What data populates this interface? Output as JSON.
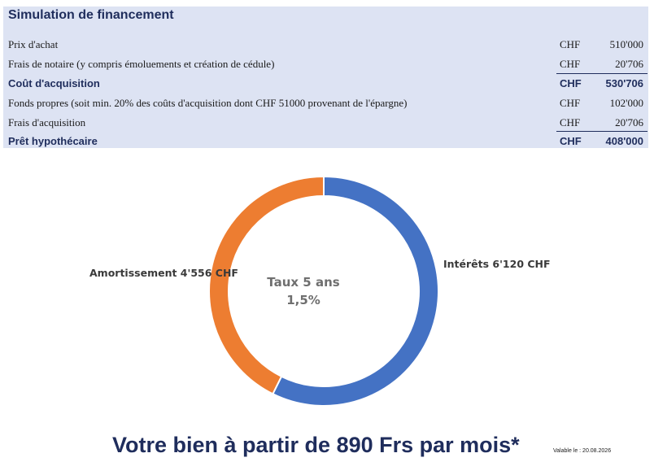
{
  "title": "Simulation de financement",
  "rows": [
    {
      "label": "Prix d'achat",
      "currency": "CHF",
      "amount": "510'000",
      "bold": false
    },
    {
      "label": "Frais de notaire (y compris émoluements et création de cédule)",
      "currency": "CHF",
      "amount": "20'706",
      "bold": false
    },
    {
      "label": "Coût d'acquisition",
      "currency": "CHF",
      "amount": "530'706",
      "bold": true
    },
    {
      "label": "Fonds propres (soit min. 20% des coûts d'acquisition dont CHF 51000 provenant de l'épargne)",
      "currency": "CHF",
      "amount": "102'000",
      "bold": false
    },
    {
      "label": "Frais d'acquisition",
      "currency": "CHF",
      "amount": "20'706",
      "bold": false
    },
    {
      "label": "Prêt hypothécaire",
      "currency": "CHF",
      "amount": "408'000",
      "bold": true
    }
  ],
  "chart_data": {
    "type": "pie",
    "series": [
      {
        "label": "Intérêts 6'120 CHF",
        "value": 6120,
        "color": "#4472c4"
      },
      {
        "label": "Amortissement 4'556 CHF",
        "value": 4556,
        "color": "#ed7d31"
      }
    ],
    "center_line1": "Taux 5 ans",
    "center_line2": "1,5%"
  },
  "headline": "Votre bien à partir de 890 Frs par mois*",
  "valid_until": "Valable le : 20.08.2026"
}
